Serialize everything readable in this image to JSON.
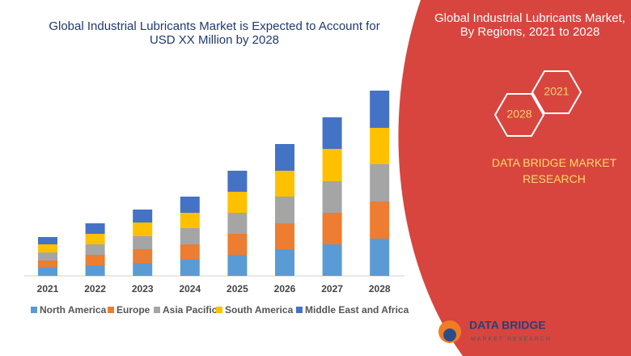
{
  "chart_data": {
    "type": "stacked_bar",
    "title": "Global Industrial Lubricants Market is Expected to Account for USD XX Million by 2028",
    "categories": [
      "2021",
      "2022",
      "2023",
      "2024",
      "2025",
      "2026",
      "2027",
      "2028"
    ],
    "series": [
      {
        "name": "North America",
        "color": "#5b9bd5",
        "values": [
          10,
          13,
          16,
          20,
          26,
          33,
          39,
          46
        ]
      },
      {
        "name": "Europe",
        "color": "#ed7d31",
        "values": [
          9,
          13,
          17,
          19,
          26,
          32,
          39,
          46
        ]
      },
      {
        "name": "Asia Pacific",
        "color": "#a5a5a5",
        "values": [
          10,
          13,
          16,
          20,
          26,
          33,
          39,
          46
        ]
      },
      {
        "name": "South America",
        "color": "#ffc000",
        "values": [
          10,
          13,
          17,
          19,
          26,
          32,
          40,
          45
        ]
      },
      {
        "name": "Middle East and Africa",
        "color": "#4472c4",
        "values": [
          9,
          13,
          16,
          20,
          26,
          33,
          39,
          46
        ]
      }
    ]
  },
  "side_panel": {
    "title": "Global Industrial Lubricants Market, By Regions, 2021 to 2028",
    "hexagons": [
      "2021",
      "2028"
    ],
    "brand": "DATA BRIDGE MARKET RESEARCH"
  },
  "logo": {
    "name": "DATA BRIDGE",
    "tagline": "MARKET RESEARCH"
  }
}
